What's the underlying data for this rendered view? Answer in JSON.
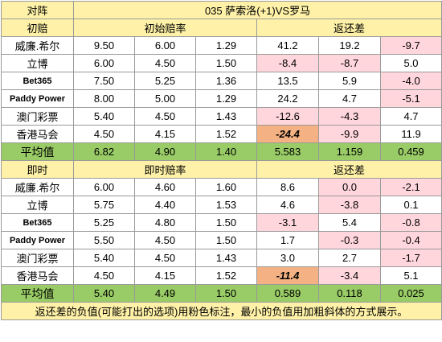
{
  "header": {
    "corner_label": "对阵",
    "match_title": "035  萨索洛(+1)VS罗马"
  },
  "sections": [
    {
      "label": "初赔",
      "odds_header": "初始赔率",
      "return_header": "返还差",
      "rows": [
        {
          "bookmaker": "威廉.希尔",
          "en": false,
          "odds": [
            "9.50",
            "6.00",
            "1.29"
          ],
          "diff": [
            "41.2",
            "19.2",
            "-9.7"
          ],
          "neg": [
            false,
            false,
            true
          ],
          "min": [
            false,
            false,
            false
          ]
        },
        {
          "bookmaker": "立博",
          "en": false,
          "odds": [
            "6.00",
            "4.50",
            "1.50"
          ],
          "diff": [
            "-8.4",
            "-8.7",
            "5.0"
          ],
          "neg": [
            true,
            true,
            false
          ],
          "min": [
            false,
            false,
            false
          ]
        },
        {
          "bookmaker": "Bet365",
          "en": true,
          "odds": [
            "7.50",
            "5.25",
            "1.36"
          ],
          "diff": [
            "13.5",
            "5.9",
            "-4.0"
          ],
          "neg": [
            false,
            false,
            true
          ],
          "min": [
            false,
            false,
            false
          ]
        },
        {
          "bookmaker": "Paddy Power",
          "en": true,
          "odds": [
            "8.00",
            "5.00",
            "1.29"
          ],
          "diff": [
            "24.2",
            "4.7",
            "-5.1"
          ],
          "neg": [
            false,
            false,
            true
          ],
          "min": [
            false,
            false,
            false
          ]
        },
        {
          "bookmaker": "澳门彩票",
          "en": false,
          "odds": [
            "5.40",
            "4.50",
            "1.43"
          ],
          "diff": [
            "-12.6",
            "-4.3",
            "4.7"
          ],
          "neg": [
            true,
            true,
            false
          ],
          "min": [
            false,
            false,
            false
          ]
        },
        {
          "bookmaker": "香港马会",
          "en": false,
          "odds": [
            "4.50",
            "4.15",
            "1.52"
          ],
          "diff": [
            "-24.4",
            "-9.9",
            "11.9"
          ],
          "neg": [
            true,
            true,
            false
          ],
          "min": [
            true,
            false,
            false
          ]
        }
      ],
      "avg": {
        "label": "平均值",
        "odds": [
          "6.82",
          "4.90",
          "1.40"
        ],
        "diff": [
          "5.583",
          "1.159",
          "0.459"
        ]
      }
    },
    {
      "label": "即时",
      "odds_header": "即时赔率",
      "return_header": "返还差",
      "rows": [
        {
          "bookmaker": "威廉.希尔",
          "en": false,
          "odds": [
            "6.00",
            "4.60",
            "1.60"
          ],
          "diff": [
            "8.6",
            "0.0",
            "-2.1"
          ],
          "neg": [
            false,
            true,
            true
          ],
          "min": [
            false,
            false,
            false
          ]
        },
        {
          "bookmaker": "立博",
          "en": false,
          "odds": [
            "5.75",
            "4.40",
            "1.53"
          ],
          "diff": [
            "4.6",
            "-3.8",
            "0.1"
          ],
          "neg": [
            false,
            true,
            false
          ],
          "min": [
            false,
            false,
            false
          ]
        },
        {
          "bookmaker": "Bet365",
          "en": true,
          "odds": [
            "5.25",
            "4.80",
            "1.50"
          ],
          "diff": [
            "-3.1",
            "5.4",
            "-0.8"
          ],
          "neg": [
            true,
            false,
            true
          ],
          "min": [
            false,
            false,
            false
          ]
        },
        {
          "bookmaker": "Paddy Power",
          "en": true,
          "odds": [
            "5.50",
            "4.50",
            "1.50"
          ],
          "diff": [
            "1.7",
            "-0.3",
            "-0.4"
          ],
          "neg": [
            false,
            true,
            true
          ],
          "min": [
            false,
            false,
            false
          ]
        },
        {
          "bookmaker": "澳门彩票",
          "en": false,
          "odds": [
            "5.40",
            "4.50",
            "1.43"
          ],
          "diff": [
            "3.0",
            "2.7",
            "-1.7"
          ],
          "neg": [
            false,
            false,
            true
          ],
          "min": [
            false,
            false,
            false
          ]
        },
        {
          "bookmaker": "香港马会",
          "en": false,
          "odds": [
            "4.50",
            "4.15",
            "1.52"
          ],
          "diff": [
            "-11.4",
            "-3.4",
            "5.1"
          ],
          "neg": [
            true,
            true,
            false
          ],
          "min": [
            true,
            false,
            false
          ]
        }
      ],
      "avg": {
        "label": "平均值",
        "odds": [
          "5.40",
          "4.49",
          "1.50"
        ],
        "diff": [
          "0.589",
          "0.118",
          "0.025"
        ]
      }
    }
  ],
  "footer_note": "返还差的负值(可能打出的选项)用粉色标注，最小的负值用加粗斜体的方式展示。",
  "colors": {
    "header_bg": "#fff2a8",
    "avg_bg": "#99cc66",
    "negative_bg": "#ffd6dc",
    "negative_text": "#e0506a",
    "min_bg": "#f4b183"
  }
}
